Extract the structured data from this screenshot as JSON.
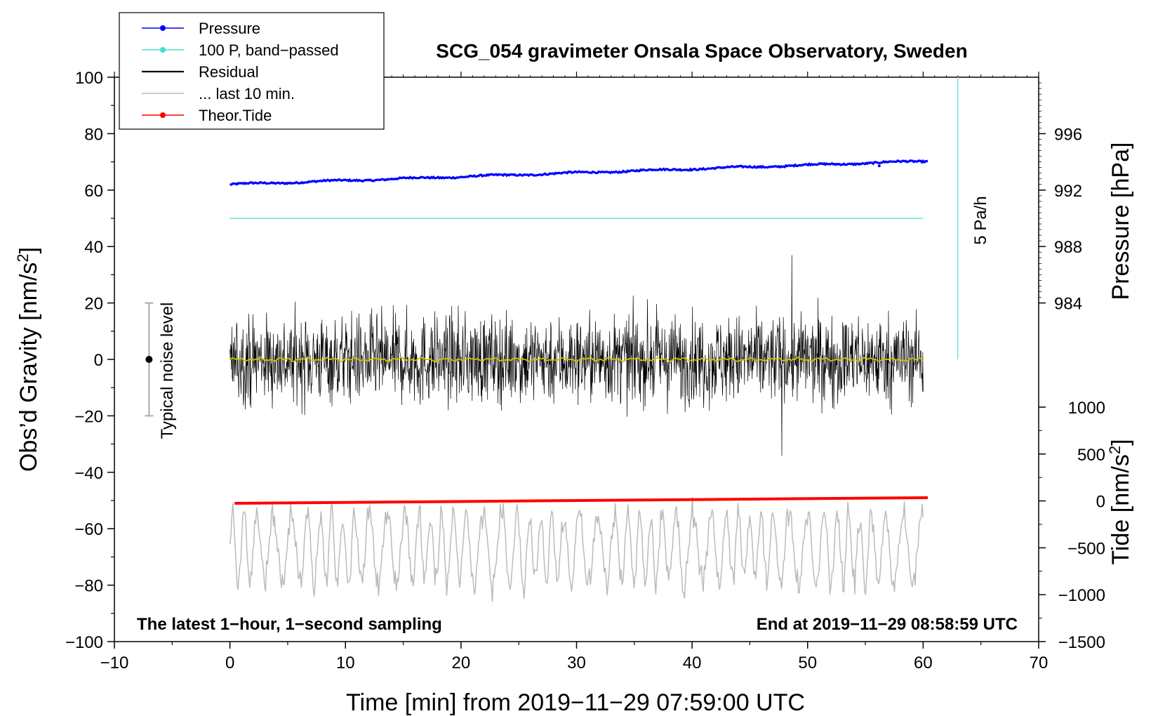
{
  "chart_data": {
    "type": "line",
    "title": "SCG_054 gravimeter Onsala Space Observatory, Sweden",
    "xlabel": "Time [min] from 2019−11−29 07:59:00 UTC",
    "ylabel_left": "Obs’d Gravity [nm/s",
    "ylabel_left_sup": "2",
    "ylabel_left_close": "]",
    "ylabel_right_pressure": "Pressure [hPa]",
    "ylabel_right_tide": "Tide [nm/s",
    "ylabel_right_tide_sup": "2",
    "ylabel_right_tide_close": "]",
    "xlim": [
      -10,
      70
    ],
    "ylim_left": [
      -100,
      100
    ],
    "x_ticks": [
      "−10",
      "0",
      "10",
      "20",
      "30",
      "40",
      "50",
      "60",
      "70"
    ],
    "y_left_ticks": [
      "100",
      "80",
      "60",
      "40",
      "20",
      "0",
      "−20",
      "−40",
      "−60",
      "−80",
      "−100"
    ],
    "pressure_ticks": [
      "996",
      "992",
      "988",
      "984"
    ],
    "tide_ticks": [
      "1000",
      "500",
      "0",
      "−500",
      "−1000",
      "−1500"
    ],
    "pressure_range_hpa": [
      992.4,
      994.2
    ],
    "bandpassed_level": 50,
    "residual_amplitude": 22,
    "tide_start": -51,
    "tide_end": -49,
    "last10_center": -67,
    "last10_amplitude": 14,
    "annotation_rate": "5 Pa/h",
    "annotation_noise": "Typical noise level",
    "note_left": "The latest 1−hour, 1−second sampling",
    "note_right": "End at 2019−11−29 08:58:59 UTC",
    "legend": [
      {
        "label": "Pressure",
        "color": "#0000ff",
        "marker": true
      },
      {
        "label": "100 P, band−passed",
        "color": "#40e0d0",
        "marker": true
      },
      {
        "label": "Residual",
        "color": "#000000",
        "marker": false
      },
      {
        "label": "... last 10 min.",
        "color": "#bbbbbb",
        "marker": false
      },
      {
        "label": "Theor.Tide",
        "color": "#ff0000",
        "marker": true
      }
    ],
    "colors": {
      "pressure": "#0000ff",
      "bandpassed": "#40e0d0",
      "residual": "#000000",
      "filtered": "#c8c800",
      "last10": "#bbbbbb",
      "tide": "#ff0000",
      "rate_line": "#7fe0e0",
      "noise_bar": "#aaaaaa"
    }
  }
}
